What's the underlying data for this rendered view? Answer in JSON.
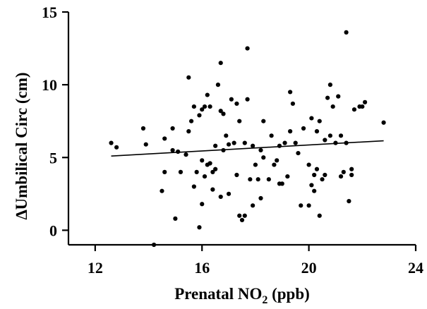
{
  "chart_data": {
    "type": "scatter",
    "xlabel_main": "Prenatal NO",
    "xlabel_sub": "2",
    "xlabel_tail": " (ppb)",
    "ylabel": "∆Umbilical Circ (cm)",
    "xlim": [
      11,
      24
    ],
    "ylim": [
      -1,
      15
    ],
    "x_ticks": [
      12,
      16,
      20,
      24
    ],
    "y_ticks": [
      0,
      5,
      10,
      15
    ],
    "grid": false,
    "trend_line": {
      "x": [
        12.6,
        22.8
      ],
      "y": [
        5.1,
        6.15
      ]
    },
    "points": [
      [
        12.6,
        6.0
      ],
      [
        12.8,
        5.7
      ],
      [
        13.8,
        7.0
      ],
      [
        13.9,
        5.9
      ],
      [
        14.2,
        -1.0
      ],
      [
        14.5,
        2.7
      ],
      [
        14.6,
        4.0
      ],
      [
        14.6,
        6.3
      ],
      [
        14.9,
        5.5
      ],
      [
        14.9,
        7.0
      ],
      [
        15.0,
        0.8
      ],
      [
        15.1,
        5.4
      ],
      [
        15.2,
        4.0
      ],
      [
        15.4,
        5.2
      ],
      [
        15.5,
        10.5
      ],
      [
        15.5,
        6.8
      ],
      [
        15.6,
        7.5
      ],
      [
        15.7,
        3.0
      ],
      [
        15.7,
        8.5
      ],
      [
        15.8,
        4.0
      ],
      [
        15.9,
        0.2
      ],
      [
        15.9,
        7.9
      ],
      [
        16.0,
        1.8
      ],
      [
        16.0,
        4.8
      ],
      [
        16.0,
        8.3
      ],
      [
        16.1,
        3.7
      ],
      [
        16.1,
        8.5
      ],
      [
        16.2,
        9.3
      ],
      [
        16.2,
        4.5
      ],
      [
        16.3,
        8.5
      ],
      [
        16.3,
        4.6
      ],
      [
        16.4,
        2.8
      ],
      [
        16.4,
        4.0
      ],
      [
        16.5,
        5.8
      ],
      [
        16.5,
        4.2
      ],
      [
        16.6,
        10.0
      ],
      [
        16.7,
        8.2
      ],
      [
        16.7,
        11.5
      ],
      [
        16.7,
        2.3
      ],
      [
        16.8,
        5.5
      ],
      [
        16.8,
        8.0
      ],
      [
        16.9,
        6.5
      ],
      [
        17.0,
        5.9
      ],
      [
        17.0,
        2.5
      ],
      [
        17.1,
        9.0
      ],
      [
        17.2,
        6.0
      ],
      [
        17.3,
        8.7
      ],
      [
        17.3,
        3.8
      ],
      [
        17.4,
        1.0
      ],
      [
        17.4,
        7.5
      ],
      [
        17.5,
        0.7
      ],
      [
        17.6,
        1.0
      ],
      [
        17.6,
        6.0
      ],
      [
        17.7,
        12.5
      ],
      [
        17.7,
        9.0
      ],
      [
        17.8,
        3.5
      ],
      [
        17.9,
        5.8
      ],
      [
        17.9,
        1.7
      ],
      [
        18.0,
        4.5
      ],
      [
        18.1,
        3.5
      ],
      [
        18.2,
        2.2
      ],
      [
        18.2,
        5.5
      ],
      [
        18.3,
        7.5
      ],
      [
        18.3,
        5.0
      ],
      [
        18.5,
        3.5
      ],
      [
        18.6,
        6.5
      ],
      [
        18.7,
        4.5
      ],
      [
        18.8,
        4.8
      ],
      [
        18.9,
        5.8
      ],
      [
        18.9,
        3.2
      ],
      [
        19.0,
        3.2
      ],
      [
        19.1,
        6.0
      ],
      [
        19.2,
        3.7
      ],
      [
        19.3,
        9.5
      ],
      [
        19.3,
        6.8
      ],
      [
        19.4,
        8.7
      ],
      [
        19.5,
        6.0
      ],
      [
        19.6,
        5.3
      ],
      [
        19.7,
        1.7
      ],
      [
        19.8,
        7.0
      ],
      [
        20.0,
        1.7
      ],
      [
        20.0,
        4.5
      ],
      [
        20.1,
        3.1
      ],
      [
        20.1,
        7.7
      ],
      [
        20.2,
        2.7
      ],
      [
        20.2,
        3.8
      ],
      [
        20.3,
        6.8
      ],
      [
        20.3,
        4.2
      ],
      [
        20.4,
        1.0
      ],
      [
        20.4,
        7.5
      ],
      [
        20.5,
        3.5
      ],
      [
        20.6,
        3.8
      ],
      [
        20.6,
        6.2
      ],
      [
        20.7,
        9.1
      ],
      [
        20.8,
        6.5
      ],
      [
        20.8,
        10.0
      ],
      [
        20.9,
        8.5
      ],
      [
        21.0,
        6.0
      ],
      [
        21.1,
        9.2
      ],
      [
        21.2,
        3.7
      ],
      [
        21.2,
        6.5
      ],
      [
        21.3,
        4.0
      ],
      [
        21.4,
        13.6
      ],
      [
        21.4,
        6.0
      ],
      [
        21.5,
        2.0
      ],
      [
        21.6,
        3.8
      ],
      [
        21.6,
        4.2
      ],
      [
        21.7,
        8.3
      ],
      [
        21.9,
        8.5
      ],
      [
        22.0,
        8.5
      ],
      [
        22.1,
        8.8
      ],
      [
        22.8,
        7.4
      ]
    ]
  }
}
